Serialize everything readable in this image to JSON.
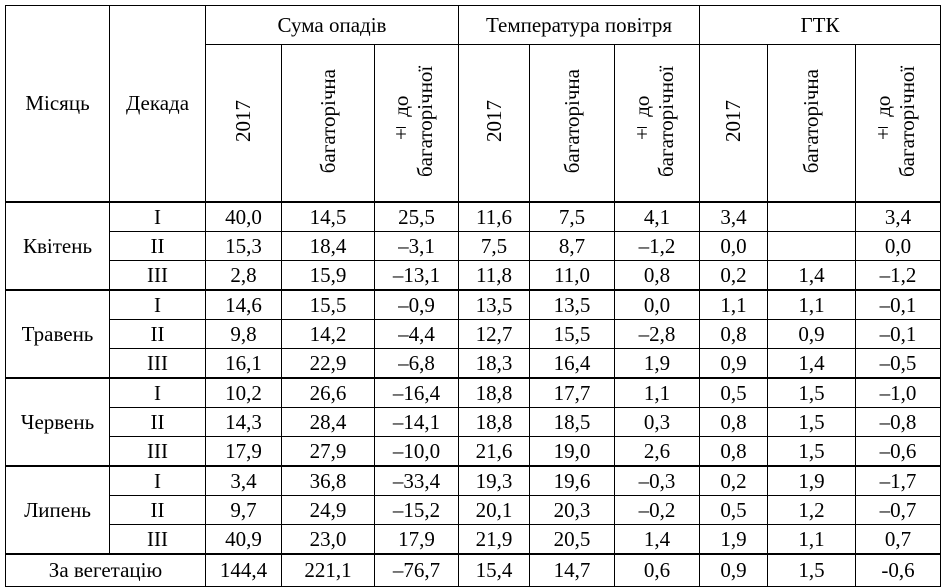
{
  "header": {
    "month": "Місяць",
    "decade": "Декада",
    "groups": [
      "Сума опадів",
      "Температура повітря",
      "ГТК"
    ],
    "sub": [
      "2017",
      "багаторічна",
      "± до багаторічної"
    ]
  },
  "months": [
    {
      "name": "Квітень",
      "rows": [
        {
          "decade": "I",
          "cells": [
            "40,0",
            "14,5",
            "25,5",
            "11,6",
            "7,5",
            "4,1",
            "3,4",
            "",
            "3,4"
          ]
        },
        {
          "decade": "II",
          "cells": [
            "15,3",
            "18,4",
            "–3,1",
            "7,5",
            "8,7",
            "–1,2",
            "0,0",
            "",
            "0,0"
          ]
        },
        {
          "decade": "III",
          "cells": [
            "2,8",
            "15,9",
            "–13,1",
            "11,8",
            "11,0",
            "0,8",
            "0,2",
            "1,4",
            "–1,2"
          ]
        }
      ]
    },
    {
      "name": "Травень",
      "rows": [
        {
          "decade": "I",
          "cells": [
            "14,6",
            "15,5",
            "–0,9",
            "13,5",
            "13,5",
            "0,0",
            "1,1",
            "1,1",
            "–0,1"
          ]
        },
        {
          "decade": "II",
          "cells": [
            "9,8",
            "14,2",
            "–4,4",
            "12,7",
            "15,5",
            "–2,8",
            "0,8",
            "0,9",
            "–0,1"
          ]
        },
        {
          "decade": "III",
          "cells": [
            "16,1",
            "22,9",
            "–6,8",
            "18,3",
            "16,4",
            "1,9",
            "0,9",
            "1,4",
            "–0,5"
          ]
        }
      ]
    },
    {
      "name": "Червень",
      "rows": [
        {
          "decade": "I",
          "cells": [
            "10,2",
            "26,6",
            "–16,4",
            "18,8",
            "17,7",
            "1,1",
            "0,5",
            "1,5",
            "–1,0"
          ]
        },
        {
          "decade": "II",
          "cells": [
            "14,3",
            "28,4",
            "–14,1",
            "18,8",
            "18,5",
            "0,3",
            "0,8",
            "1,5",
            "–0,8"
          ]
        },
        {
          "decade": "III",
          "cells": [
            "17,9",
            "27,9",
            "–10,0",
            "21,6",
            "19,0",
            "2,6",
            "0,8",
            "1,5",
            "–0,6"
          ]
        }
      ]
    },
    {
      "name": "Липень",
      "rows": [
        {
          "decade": "I",
          "cells": [
            "3,4",
            "36,8",
            "–33,4",
            "19,3",
            "19,6",
            "–0,3",
            "0,2",
            "1,9",
            "–1,7"
          ]
        },
        {
          "decade": "II",
          "cells": [
            "9,7",
            "24,9",
            "–15,2",
            "20,1",
            "20,3",
            "–0,2",
            "0,5",
            "1,2",
            "–0,7"
          ]
        },
        {
          "decade": "III",
          "cells": [
            "40,9",
            "23,0",
            "17,9",
            "21,9",
            "20,5",
            "1,4",
            "1,9",
            "1,1",
            "0,7"
          ]
        }
      ]
    }
  ],
  "total": {
    "label": "За вегетацію",
    "cells": [
      "144,4",
      "221,1",
      "–76,7",
      "15,4",
      "14,7",
      "0,6",
      "0,9",
      "1,5",
      "-0,6"
    ]
  }
}
